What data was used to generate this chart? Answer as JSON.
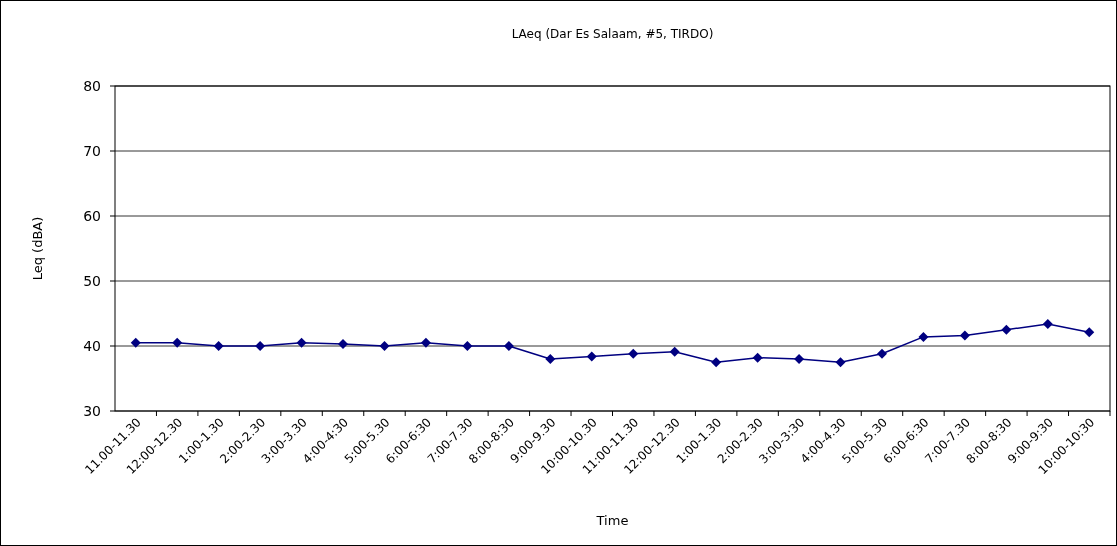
{
  "chart_data": {
    "type": "line",
    "title": "LAeq (Dar Es Salaam, #5, TIRDO)",
    "xlabel": "Time",
    "ylabel": "Leq (dBA)",
    "categories": [
      "11.00-11.30",
      "12:00-12.30",
      "1:00-1.30",
      "2:00-2.30",
      "3:00-3.30",
      "4:00-4:30",
      "5:00-5.30",
      "6:00-6:30",
      "7:00-7.30",
      "8:00-8:30",
      "9:00-9.30",
      "10:00-10.30",
      "11:00-11.30",
      "12:00-12.30",
      "1:00-1.30",
      "2:00-2.30",
      "3:00-3:30",
      "4:00-4.30",
      "5:00-5.30",
      "6:00-6:30",
      "7:00-7.30",
      "8:00-8:30",
      "9:00-9:30",
      "10:00-10:30"
    ],
    "series": [
      {
        "color": "#000080",
        "values": [
          40.5,
          40.5,
          40,
          40,
          40.5,
          40.3,
          40,
          40.5,
          40,
          40,
          38,
          38.4,
          38.8,
          39.1,
          37.5,
          38.2,
          38,
          37.5,
          38.8,
          41.4,
          41.6,
          42.5,
          43.4,
          42.1
        ]
      }
    ],
    "ylim": [
      30,
      80
    ],
    "yticks": [
      30,
      40,
      50,
      60,
      70,
      80
    ],
    "grid": "y",
    "marker": "diamond"
  }
}
